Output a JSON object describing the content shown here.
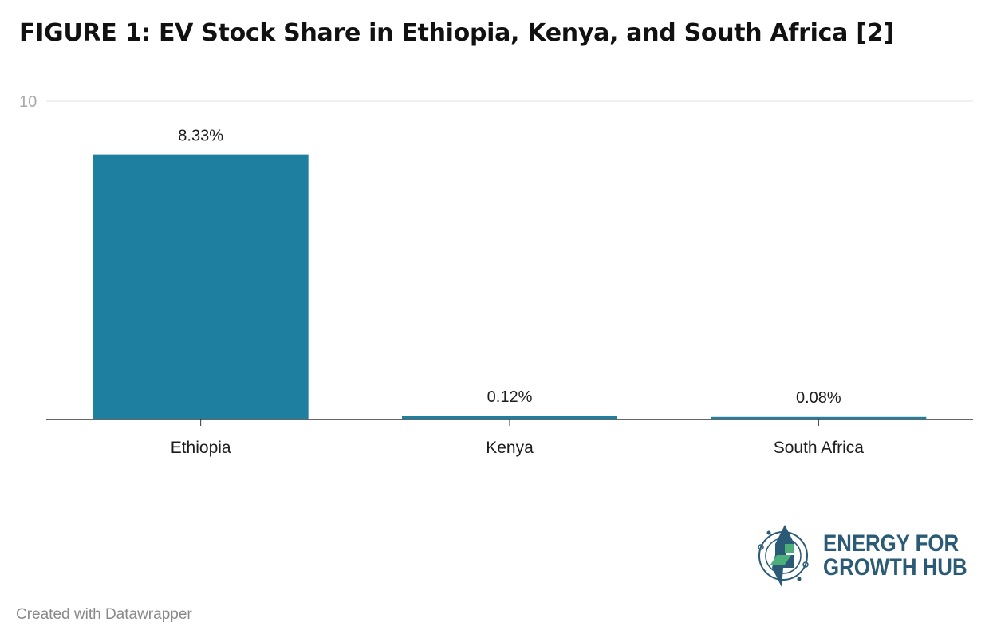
{
  "title": "FIGURE 1: EV Stock Share in Ethiopia, Kenya, and South Africa [2]",
  "footer": "Created with Datawrapper",
  "logo": {
    "line1": "ENERGY FOR",
    "line2": "GROWTH HUB",
    "icon": "energy-for-growth-hub-logo-icon"
  },
  "colors": {
    "bar": "#1f7fa0",
    "logo_text": "#2a5a76",
    "logo_green": "#4caf7a"
  },
  "chart_data": {
    "type": "bar",
    "categories": [
      "Ethiopia",
      "Kenya",
      "South Africa"
    ],
    "values": [
      8.33,
      0.12,
      0.08
    ],
    "value_labels": [
      "8.33%",
      "0.12%",
      "0.08%"
    ],
    "title": "FIGURE 1: EV Stock Share in Ethiopia, Kenya, and South Africa [2]",
    "xlabel": "",
    "ylabel": "",
    "ylim": [
      0,
      10
    ],
    "yticks": [
      10
    ],
    "ytick_labels": [
      "10"
    ],
    "grid": true,
    "legend": "none"
  }
}
